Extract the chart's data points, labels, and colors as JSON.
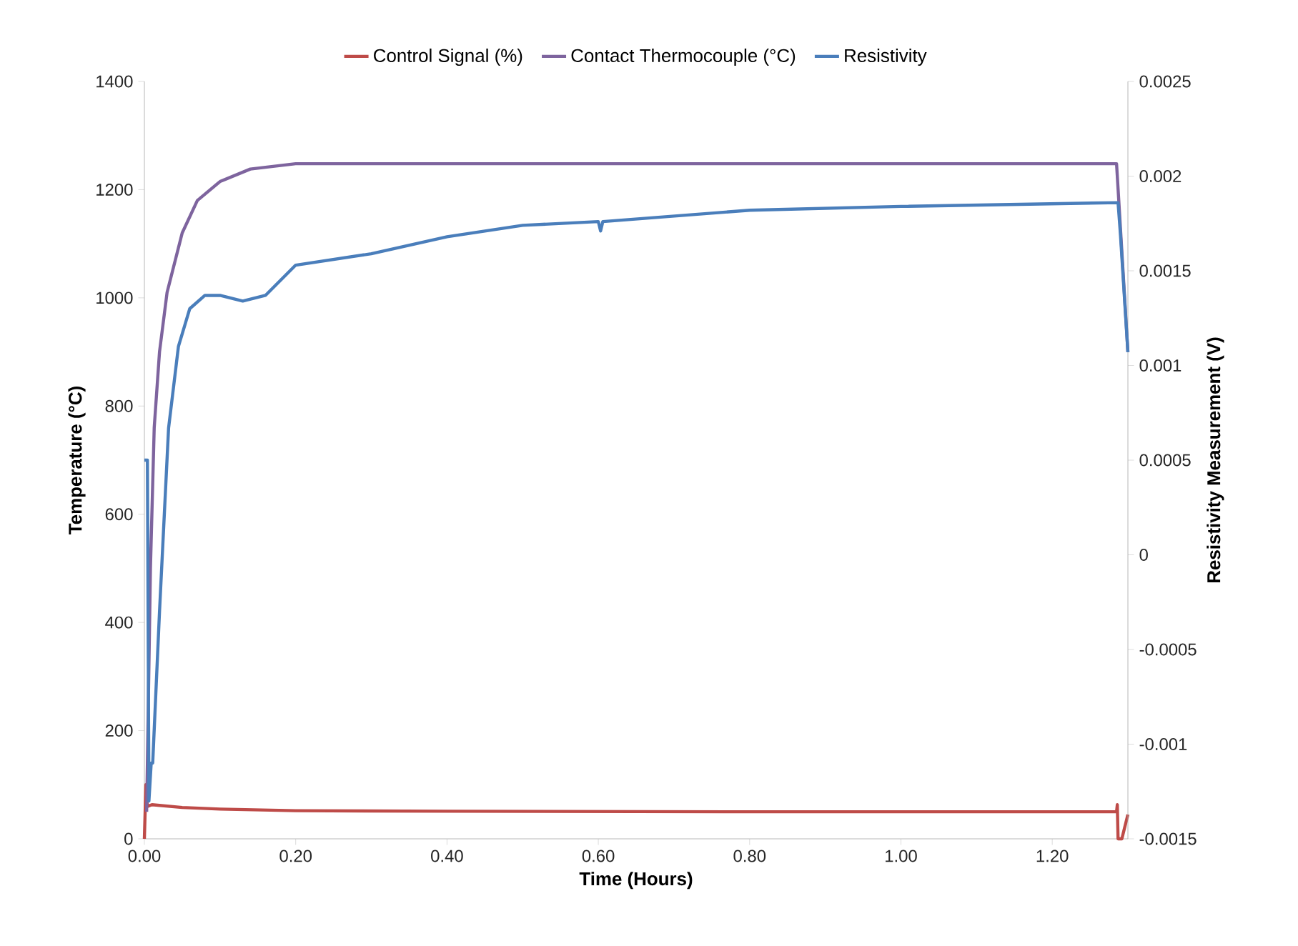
{
  "chart_data": {
    "type": "line",
    "xlabel": "Time (Hours)",
    "ylabel": "Temperature (°C)",
    "y2label": "Resistivity Measurement (V)",
    "xlim": [
      0,
      1.3
    ],
    "ylim": [
      0,
      1400
    ],
    "y2lim": [
      -0.0015,
      0.0025
    ],
    "xticks": [
      {
        "value": 0,
        "label": "0.00"
      },
      {
        "value": 0.2,
        "label": "0.20"
      },
      {
        "value": 0.4,
        "label": "0.40"
      },
      {
        "value": 0.6,
        "label": "0.60"
      },
      {
        "value": 0.8,
        "label": "0.80"
      },
      {
        "value": 1.0,
        "label": "1.00"
      },
      {
        "value": 1.2,
        "label": "1.20"
      }
    ],
    "yticks": [
      0,
      200,
      400,
      600,
      800,
      1000,
      1200,
      1400
    ],
    "y2ticks": [
      -0.0015,
      -0.001,
      -0.0005,
      0,
      0.0005,
      0.001,
      0.0015,
      0.002,
      0.0025
    ],
    "legend": "top",
    "series": [
      {
        "name": "Control Signal (%)",
        "color": "#be4b48",
        "x": [
          0,
          0.002,
          0.004,
          0.01,
          0.05,
          0.1,
          0.2,
          0.4,
          0.8,
          1.285,
          1.286,
          1.287,
          1.292,
          1.3
        ],
        "values": [
          0,
          100,
          60,
          63,
          58,
          55,
          52,
          51,
          50,
          50,
          63,
          0,
          0,
          45
        ]
      },
      {
        "name": "Contact Thermocouple (°C)",
        "color": "#7e649e",
        "x": [
          0.003,
          0.008,
          0.013,
          0.02,
          0.03,
          0.05,
          0.07,
          0.1,
          0.14,
          0.2,
          0.6,
          1.0,
          1.285,
          1.3
        ],
        "values": [
          50,
          500,
          760,
          900,
          1010,
          1120,
          1180,
          1215,
          1238,
          1248,
          1248,
          1248,
          1248,
          900
        ]
      },
      {
        "name": "Resistivity",
        "color": "#4a7ebb",
        "axis": "y2",
        "x": [
          0,
          0.004,
          0.006,
          0.009,
          0.011,
          0.02,
          0.032,
          0.045,
          0.06,
          0.08,
          0.1,
          0.13,
          0.16,
          0.2,
          0.3,
          0.4,
          0.5,
          0.6,
          0.603,
          0.606,
          0.8,
          1.0,
          1.287,
          1.29,
          1.3
        ],
        "values": [
          0.0005,
          0.0005,
          -0.0013,
          -0.0011,
          -0.0011,
          -0.0003,
          0.00067,
          0.0011,
          0.0013,
          0.00137,
          0.00137,
          0.00134,
          0.00137,
          0.00153,
          0.00159,
          0.00168,
          0.00174,
          0.00176,
          0.00171,
          0.00176,
          0.00182,
          0.00184,
          0.00186,
          0.0017,
          0.00107
        ]
      }
    ]
  }
}
